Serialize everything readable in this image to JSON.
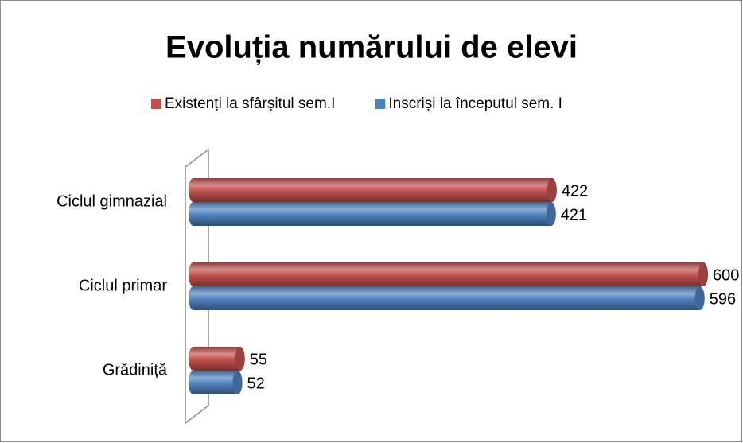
{
  "chart_data": {
    "type": "bar",
    "orientation": "horizontal",
    "style": "3d-cylinder",
    "title": "Evoluția numărului de elevi",
    "categories": [
      "Grădiniță",
      "Ciclul primar",
      "Ciclul gimnazial"
    ],
    "series": [
      {
        "name": "Existenți la sfârșitul sem.I",
        "color": "#c0504d",
        "values": [
          55,
          600,
          422
        ]
      },
      {
        "name": "Inscriși la începutul sem. I",
        "color": "#4f81bd",
        "values": [
          52,
          596,
          421
        ]
      }
    ],
    "legend": "top"
  }
}
